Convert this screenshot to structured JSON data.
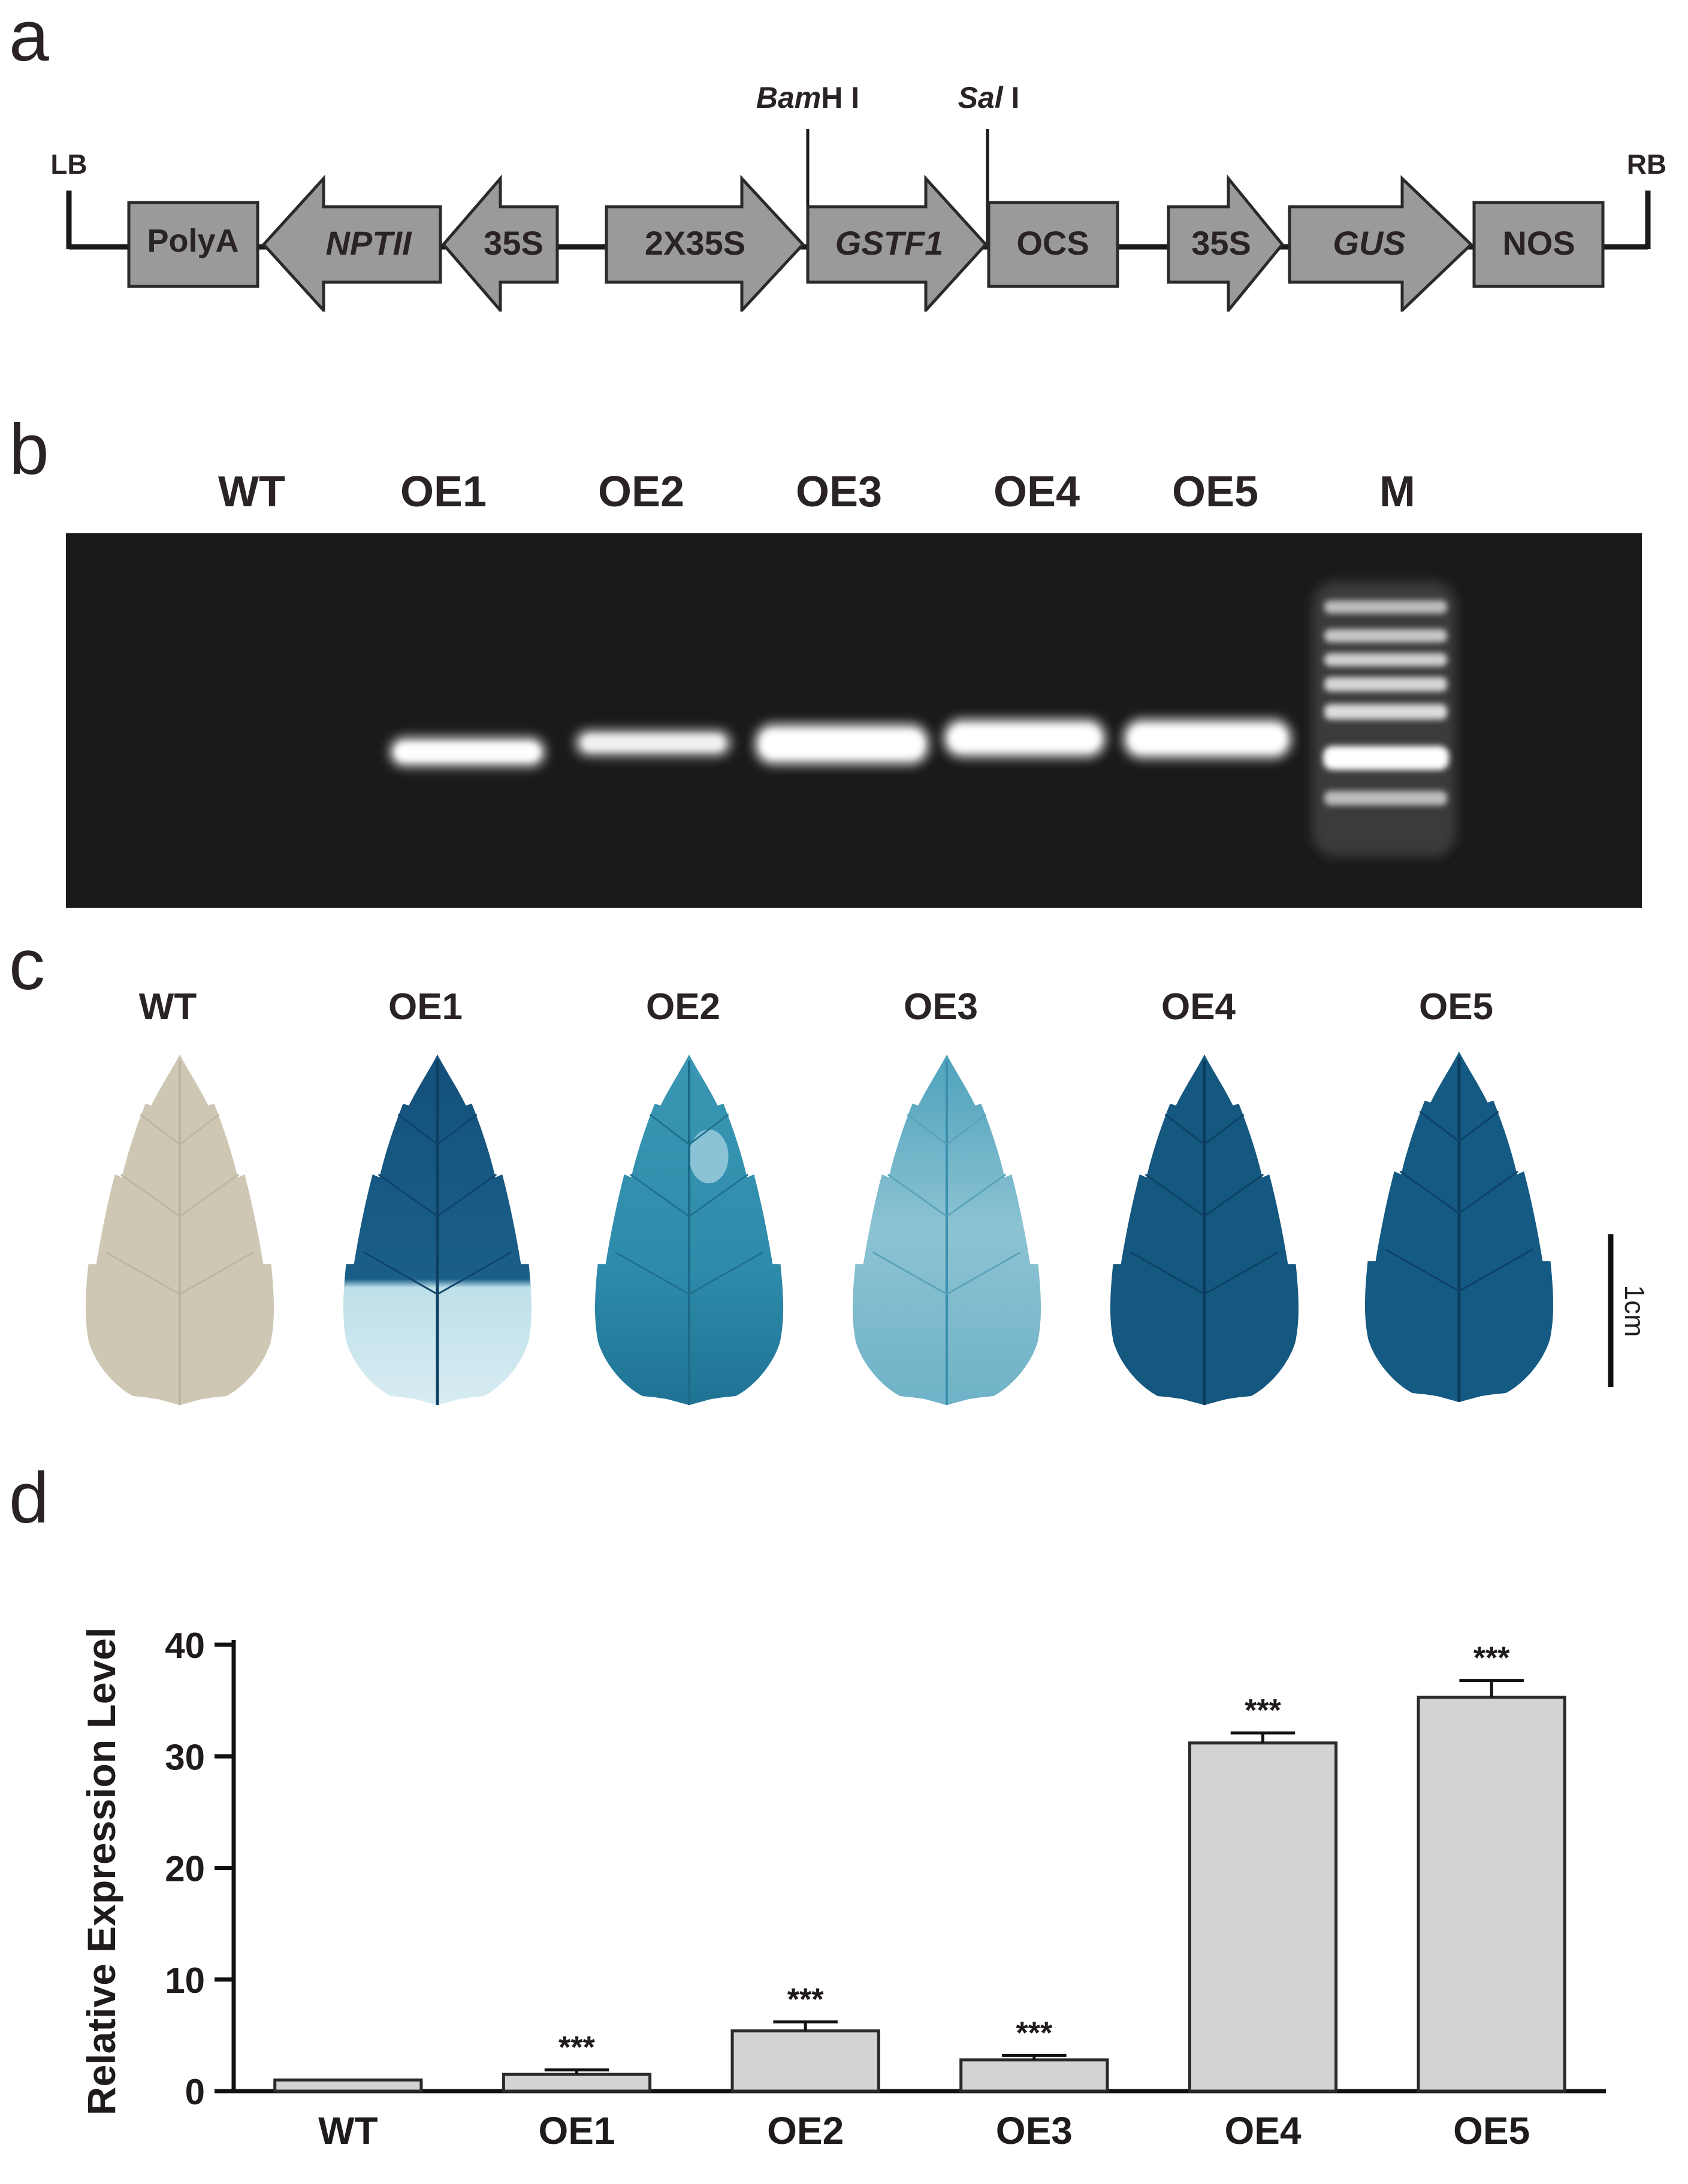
{
  "panels": {
    "a": "a",
    "b": "b",
    "c": "c",
    "d": "d"
  },
  "construct": {
    "left_border": "LB",
    "right_border": "RB",
    "site_bamhi_italic": "Bam",
    "site_bamhi_rest": "H I",
    "site_sali_italic": "Sal",
    "site_sali_rest": " I",
    "elements": [
      {
        "label": "PolyA",
        "shape": "box"
      },
      {
        "label": "NPTII",
        "shape": "arrow-left",
        "italic": true
      },
      {
        "label": "35S",
        "shape": "arrow-left"
      },
      {
        "label": "2X35S",
        "shape": "arrow-right"
      },
      {
        "label": "GSTF1",
        "shape": "arrow-right",
        "italic": true
      },
      {
        "label": "OCS",
        "shape": "box"
      },
      {
        "label": "35S",
        "shape": "arrow-right"
      },
      {
        "label": "GUS",
        "shape": "arrow-right",
        "italic": true
      },
      {
        "label": "NOS",
        "shape": "box"
      }
    ],
    "element_fill": "#9a9a9a"
  },
  "gel": {
    "lanes": [
      "WT",
      "OE1",
      "OE2",
      "OE3",
      "OE4",
      "OE5",
      "M"
    ],
    "background": "#1a1a1a"
  },
  "leaves": {
    "labels": [
      "WT",
      "OE1",
      "OE2",
      "OE3",
      "OE4",
      "OE5"
    ],
    "scale_bar": "1cm",
    "colors": {
      "wt": "#cdc7b3",
      "dark_blue": "#14577f",
      "mid_blue": "#2a86a6",
      "light_blue": "#6fb2c7",
      "pale": "#c9e4ec"
    }
  },
  "chart_data": {
    "type": "bar",
    "categories": [
      "WT",
      "OE1",
      "OE2",
      "OE3",
      "OE4",
      "OE5"
    ],
    "values": [
      1.0,
      1.5,
      5.4,
      2.8,
      31.2,
      35.3
    ],
    "errors": [
      0.0,
      0.4,
      0.8,
      0.4,
      0.9,
      1.5
    ],
    "significance": [
      "",
      "***",
      "***",
      "***",
      "***",
      "***"
    ],
    "ylabel": "Relative Expression Level",
    "xlabel": "",
    "ylim": [
      0,
      40
    ],
    "yticks": [
      "0",
      "10",
      "20",
      "30",
      "40"
    ],
    "bar_color": "#d3d3d3",
    "grid": false
  }
}
